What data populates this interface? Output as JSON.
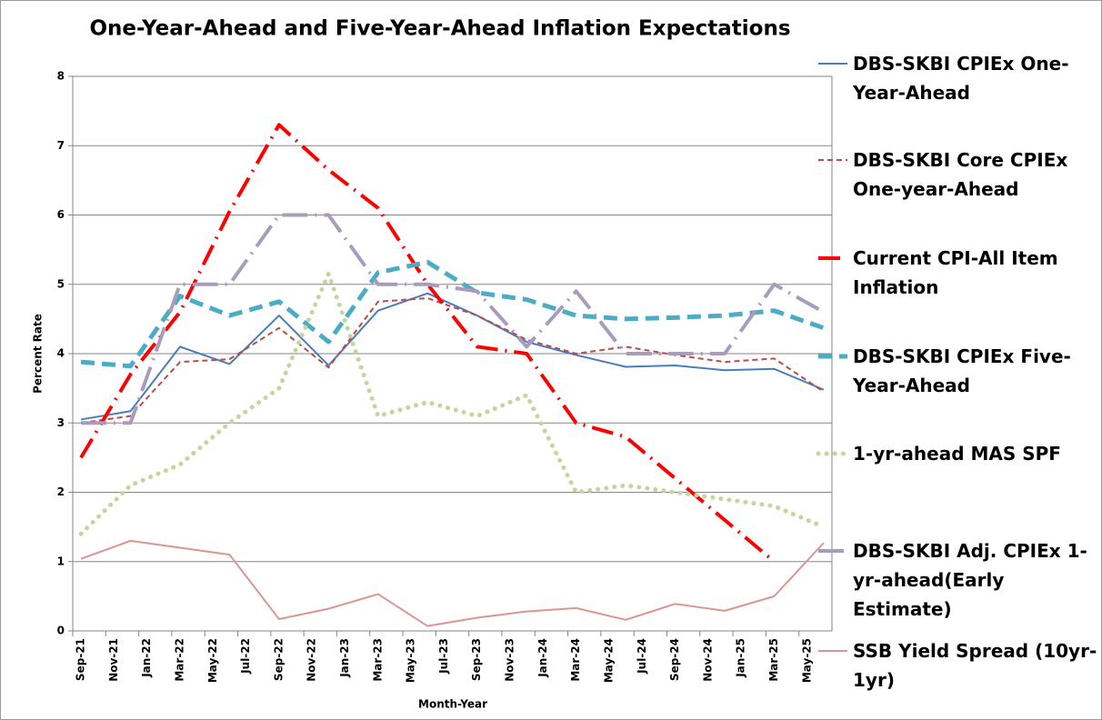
{
  "chart_data": {
    "type": "line",
    "title": "One-Year-Ahead and Five-Year-Ahead Inflation Expectations",
    "x_label": "Month-Year",
    "y_label": "Percent Rate",
    "x": [
      "2021-09",
      "2021-12",
      "2022-03",
      "2022-06",
      "2022-09",
      "2022-12",
      "2023-03",
      "2023-06",
      "2023-09",
      "2023-12",
      "2024-03",
      "2024-06",
      "2024-09",
      "2024-12",
      "2025-03",
      "2025-06"
    ],
    "xlim": [
      "2021-09",
      "2025-06"
    ],
    "xticks": [
      {
        "value": "2021-09",
        "label": "Sep-21"
      },
      {
        "value": "2021-11",
        "label": "Nov-21"
      },
      {
        "value": "2022-01",
        "label": "Jan-22"
      },
      {
        "value": "2022-03",
        "label": "Mar-22"
      },
      {
        "value": "2022-05",
        "label": "May-22"
      },
      {
        "value": "2022-07",
        "label": "Jul-22"
      },
      {
        "value": "2022-09",
        "label": "Sep-22"
      },
      {
        "value": "2022-11",
        "label": "Nov-22"
      },
      {
        "value": "2023-01",
        "label": "Jan-23"
      },
      {
        "value": "2023-03",
        "label": "Mar-23"
      },
      {
        "value": "2023-05",
        "label": "May-23"
      },
      {
        "value": "2023-07",
        "label": "Jul-23"
      },
      {
        "value": "2023-09",
        "label": "Sep-23"
      },
      {
        "value": "2023-11",
        "label": "Nov-23"
      },
      {
        "value": "2024-01",
        "label": "Jan-24"
      },
      {
        "value": "2024-03",
        "label": "Mar-24"
      },
      {
        "value": "2024-05",
        "label": "May-24"
      },
      {
        "value": "2024-07",
        "label": "Jul-24"
      },
      {
        "value": "2024-09",
        "label": "Sep-24"
      },
      {
        "value": "2024-11",
        "label": "Nov-24"
      },
      {
        "value": "2025-01",
        "label": "Jan-25"
      },
      {
        "value": "2025-03",
        "label": "Mar-25"
      },
      {
        "value": "2025-05",
        "label": "May-25"
      }
    ],
    "ylim": [
      0,
      8
    ],
    "yticks": [
      0,
      1,
      2,
      3,
      4,
      5,
      6,
      7,
      8
    ],
    "grid": true,
    "legend": "right",
    "series": [
      {
        "name": "DBS-SKBI CPIEx One-Year-Ahead",
        "color": "#4a7ebb",
        "style": "solid",
        "width": 2,
        "values": [
          3.05,
          3.17,
          4.1,
          3.85,
          4.55,
          3.83,
          4.62,
          4.87,
          4.55,
          4.17,
          3.98,
          3.81,
          3.83,
          3.76,
          3.78,
          3.48
        ]
      },
      {
        "name": "DBS-SKBI Core CPIEx One-year-Ahead",
        "color": "#be4b48",
        "style": "dash",
        "width": 2,
        "values": [
          3.0,
          3.1,
          3.88,
          3.92,
          4.37,
          3.8,
          4.75,
          4.8,
          4.55,
          4.2,
          4.0,
          4.1,
          3.98,
          3.88,
          3.93,
          3.45
        ]
      },
      {
        "name": "Current CPI-All Item Inflation",
        "color": "#ff0000",
        "style": "dashdot",
        "width": 4,
        "values": [
          2.5,
          3.7,
          4.6,
          6.05,
          7.3,
          6.65,
          6.1,
          5.0,
          4.1,
          4.0,
          3.0,
          2.8,
          2.2,
          1.6,
          1.0,
          null
        ]
      },
      {
        "name": "DBS-SKBI CPIEx Five-Year-Ahead",
        "color": "#4bacc6",
        "style": "bigdash",
        "width": 5,
        "values": [
          3.88,
          3.82,
          4.83,
          4.55,
          4.75,
          4.17,
          5.17,
          5.32,
          4.88,
          4.78,
          4.55,
          4.5,
          4.52,
          4.55,
          4.62,
          4.37
        ]
      },
      {
        "name": "1-yr-ahead MAS SPF",
        "color": "#c3d69b",
        "style": "dot",
        "width": 5,
        "values": [
          1.4,
          2.1,
          2.4,
          3.0,
          3.5,
          5.15,
          3.1,
          3.3,
          3.1,
          3.4,
          2.0,
          2.1,
          2.0,
          1.9,
          1.8,
          1.5
        ]
      },
      {
        "name": "DBS-SKBI Adj. CPIEx 1-yr-ahead(Early Estimate)",
        "color": "#a99bbd",
        "style": "longdashdot",
        "width": 4,
        "values": [
          3.0,
          3.0,
          5.0,
          5.0,
          6.0,
          6.0,
          5.0,
          5.0,
          4.9,
          4.1,
          4.9,
          4.0,
          4.0,
          4.0,
          5.0,
          4.6
        ]
      },
      {
        "name": "SSB Yield Spread (10yr-1yr)",
        "color": "#d99694",
        "style": "solid",
        "width": 2,
        "values": [
          1.04,
          1.3,
          1.2,
          1.1,
          0.17,
          0.32,
          0.53,
          0.07,
          0.19,
          0.28,
          0.33,
          0.16,
          0.39,
          0.29,
          0.5,
          1.27
        ]
      }
    ]
  }
}
